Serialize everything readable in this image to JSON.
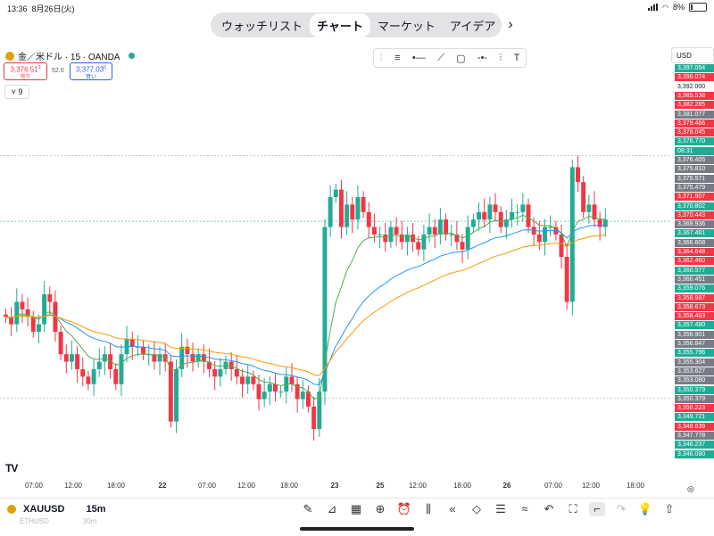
{
  "status": {
    "time": "13:36",
    "date": "8月26日(火)",
    "battery": "8%"
  },
  "nav": {
    "tabs": [
      "ウォッチリスト",
      "チャート",
      "マーケット",
      "アイデア"
    ],
    "active": 1
  },
  "symbol": {
    "title": "金／米ドル · 15 · OANDA",
    "sell_price": "3,376.51",
    "sell_sup": "0",
    "sell_label": "売り",
    "buy_price": "3,377.03",
    "buy_sup": "0",
    "buy_label": "買い",
    "spread": "52.0",
    "indicators_count": "9"
  },
  "axis": {
    "currency": "USD",
    "price_labels": [
      {
        "text": "3,397.094",
        "kind": "green"
      },
      {
        "text": "3,396.074",
        "kind": "red"
      },
      {
        "text": "3,392.000",
        "kind": "plain"
      },
      {
        "text": "3,385.538",
        "kind": "red"
      },
      {
        "text": "3,382.285",
        "kind": "red"
      },
      {
        "text": "3,381.077",
        "kind": "gray"
      },
      {
        "text": "3,379.466",
        "kind": "red"
      },
      {
        "text": "3,378.045",
        "kind": "red"
      },
      {
        "text": "3,376.770",
        "kind": "green"
      },
      {
        "text": "08:31",
        "kind": "green"
      },
      {
        "text": "3,376.405",
        "kind": "gray"
      },
      {
        "text": "3,375.810",
        "kind": "gray"
      },
      {
        "text": "3,375.571",
        "kind": "gray"
      },
      {
        "text": "3,375.479",
        "kind": "gray"
      },
      {
        "text": "3,371.907",
        "kind": "red"
      },
      {
        "text": "3,370.802",
        "kind": "green"
      },
      {
        "text": "3,370.443",
        "kind": "red"
      },
      {
        "text": "3,369.936",
        "kind": "gray"
      },
      {
        "text": "3,367.481",
        "kind": "green"
      },
      {
        "text": "3,366.608",
        "kind": "gray"
      },
      {
        "text": "3,364.648",
        "kind": "red"
      },
      {
        "text": "3,362.460",
        "kind": "red"
      },
      {
        "text": "3,360.577",
        "kind": "green"
      },
      {
        "text": "3,360.451",
        "kind": "gray"
      },
      {
        "text": "3,359.076",
        "kind": "green"
      },
      {
        "text": "3,358.987",
        "kind": "red"
      },
      {
        "text": "3,358.673",
        "kind": "red"
      },
      {
        "text": "3,358.403",
        "kind": "red"
      },
      {
        "text": "3,357.480",
        "kind": "green"
      },
      {
        "text": "3,356.901",
        "kind": "gray"
      },
      {
        "text": "3,356.847",
        "kind": "gray"
      },
      {
        "text": "3,355.796",
        "kind": "green"
      },
      {
        "text": "3,355.304",
        "kind": "gray"
      },
      {
        "text": "3,353.627",
        "kind": "gray"
      },
      {
        "text": "3,353.080",
        "kind": "gray"
      },
      {
        "text": "3,350.379",
        "kind": "green"
      },
      {
        "text": "3,350.379",
        "kind": "gray"
      },
      {
        "text": "3,350.223",
        "kind": "red"
      },
      {
        "text": "3,349.721",
        "kind": "green"
      },
      {
        "text": "3,348.639",
        "kind": "red"
      },
      {
        "text": "3,347.778",
        "kind": "gray"
      },
      {
        "text": "3,346.237",
        "kind": "green"
      },
      {
        "text": "3,346.090",
        "kind": "green"
      }
    ],
    "time_labels": [
      "07:00",
      "12:00",
      "18:00",
      "22",
      "07:00",
      "12:00",
      "18:00",
      "23",
      "25",
      "12:00",
      "18:00",
      "26",
      "07:00",
      "12:00",
      "18:00"
    ]
  },
  "colors": {
    "up": "#22ab94",
    "down": "#f23645",
    "ma_fast": "#4caf50",
    "ma_mid": "#2196f3",
    "ma_slow": "#ff9800",
    "gray": "#787b86",
    "blue": "#2962ff"
  },
  "chart_data": {
    "type": "candlestick",
    "ylim": [
      3344,
      3398
    ],
    "close": [
      3364,
      3363,
      3366,
      3365,
      3364,
      3362,
      3363,
      3367,
      3366,
      3362,
      3359,
      3358,
      3359,
      3357,
      3356,
      3355,
      3357,
      3358,
      3359,
      3357,
      3355,
      3359,
      3361,
      3360,
      3360,
      3359,
      3359,
      3358,
      3359,
      3358,
      3350,
      3357,
      3360,
      3359,
      3358,
      3359,
      3358,
      3357,
      3356,
      3357,
      3358,
      3357,
      3356,
      3355,
      3356,
      3355,
      3353,
      3354,
      3355,
      3354,
      3354,
      3356,
      3355,
      3353,
      3354,
      3352,
      3349,
      3354,
      3376,
      3380,
      3381,
      3376,
      3379,
      3377,
      3380,
      3378,
      3376,
      3375,
      3375,
      3374,
      3376,
      3375,
      3374,
      3375,
      3374,
      3373,
      3375,
      3376,
      3375,
      3377,
      3375,
      3375,
      3374,
      3373,
      3376,
      3377,
      3378,
      3377,
      3379,
      3378,
      3376,
      3377,
      3378,
      3378,
      3379,
      3376,
      3375,
      3374,
      3376,
      3376,
      3375,
      3372,
      3366,
      3384,
      3382,
      3378,
      3379,
      3377,
      3376,
      3377
    ]
  },
  "bottom": {
    "symbol": "XAUUSD",
    "interval": "15m",
    "symbol2": "ETHUSD",
    "interval2": "30m"
  }
}
